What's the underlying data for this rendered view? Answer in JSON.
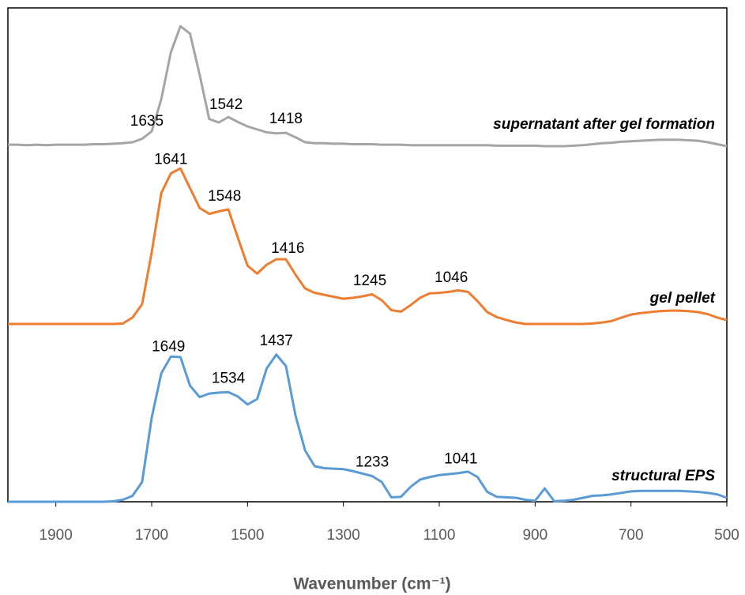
{
  "chart_data": {
    "type": "line",
    "x_label": "Wavenumber (cm⁻¹)",
    "xlim": [
      2000,
      500
    ],
    "xticks": [
      1900,
      1700,
      1500,
      1300,
      1100,
      900,
      700,
      500
    ],
    "ylim": [
      0,
      100
    ],
    "x": [
      2000,
      1980,
      1960,
      1940,
      1920,
      1900,
      1880,
      1860,
      1840,
      1820,
      1800,
      1780,
      1760,
      1740,
      1720,
      1700,
      1680,
      1660,
      1640,
      1620,
      1600,
      1580,
      1560,
      1540,
      1520,
      1500,
      1480,
      1460,
      1440,
      1420,
      1400,
      1380,
      1360,
      1340,
      1320,
      1300,
      1280,
      1260,
      1240,
      1220,
      1200,
      1180,
      1160,
      1140,
      1120,
      1100,
      1080,
      1060,
      1040,
      1020,
      1000,
      980,
      960,
      940,
      920,
      900,
      880,
      860,
      840,
      820,
      800,
      780,
      760,
      740,
      720,
      700,
      680,
      660,
      640,
      620,
      600,
      580,
      560,
      540,
      520,
      500
    ],
    "series": [
      {
        "name": "supernatant after gel formation",
        "color": "#a5a5a5",
        "values": [
          72.3,
          72.3,
          72.2,
          72.3,
          72.2,
          72.3,
          72.3,
          72.3,
          72.3,
          72.4,
          72.4,
          72.5,
          72.6,
          72.8,
          73.5,
          75.0,
          81.5,
          91.0,
          96.3,
          94.8,
          86.5,
          77.5,
          76.8,
          77.9,
          76.9,
          76.0,
          75.4,
          74.8,
          74.6,
          74.7,
          73.8,
          72.8,
          72.6,
          72.6,
          72.5,
          72.5,
          72.4,
          72.4,
          72.4,
          72.3,
          72.3,
          72.3,
          72.2,
          72.2,
          72.2,
          72.2,
          72.2,
          72.2,
          72.2,
          72.2,
          72.2,
          72.1,
          72.1,
          72.1,
          72.1,
          72.1,
          72.0,
          72.0,
          72.0,
          72.1,
          72.2,
          72.4,
          72.6,
          72.7,
          72.9,
          73.0,
          73.1,
          73.2,
          73.3,
          73.3,
          73.3,
          73.2,
          73.1,
          72.8,
          72.4,
          72.0
        ],
        "annotations": [
          {
            "text": "1635",
            "x": 1710
          },
          {
            "text": "1542",
            "x": 1545
          },
          {
            "text": "1418",
            "x": 1420
          }
        ]
      },
      {
        "name": "gel pellet",
        "color": "#ed7d31",
        "values": [
          36.0,
          36.0,
          36.0,
          36.0,
          36.0,
          36.0,
          36.0,
          36.0,
          36.0,
          36.0,
          36.0,
          36.0,
          36.1,
          37.3,
          40.0,
          50.5,
          62.5,
          66.5,
          67.5,
          63.5,
          59.5,
          58.3,
          58.8,
          59.2,
          53.4,
          47.8,
          46.2,
          48.0,
          49.1,
          49.1,
          46.0,
          43.2,
          42.3,
          41.9,
          41.5,
          41.1,
          41.3,
          41.6,
          42.0,
          40.8,
          38.8,
          38.5,
          39.8,
          41.3,
          42.2,
          42.3,
          42.5,
          42.8,
          42.5,
          40.6,
          38.4,
          37.4,
          36.8,
          36.3,
          36.0,
          36.0,
          36.0,
          36.0,
          36.0,
          36.0,
          36.0,
          36.1,
          36.3,
          36.6,
          37.3,
          37.9,
          38.2,
          38.4,
          38.6,
          38.7,
          38.7,
          38.6,
          38.4,
          38.0,
          37.3,
          36.8
        ],
        "annotations": [
          {
            "text": "1641",
            "x": 1660
          },
          {
            "text": "1548",
            "x": 1548
          },
          {
            "text": "1416",
            "x": 1416
          },
          {
            "text": "1245",
            "x": 1245
          },
          {
            "text": "1046",
            "x": 1075
          }
        ]
      },
      {
        "name": "structural EPS",
        "color": "#5b9bd5",
        "values": [
          0,
          0,
          0,
          0,
          0,
          0,
          0,
          0,
          0,
          0,
          0,
          0.1,
          0.4,
          1.2,
          4.0,
          17.0,
          26.0,
          29.4,
          29.3,
          23.5,
          21.2,
          21.9,
          22.1,
          22.2,
          21.3,
          19.7,
          20.8,
          27.0,
          29.8,
          27.5,
          17.5,
          10.4,
          7.2,
          6.8,
          6.7,
          6.6,
          6.2,
          5.7,
          5.2,
          4.0,
          0.9,
          1.0,
          3.0,
          4.5,
          5.0,
          5.4,
          5.6,
          5.8,
          6.1,
          5.0,
          2.0,
          1.0,
          0.9,
          0.8,
          0.4,
          0.2,
          2.7,
          0.1,
          0.2,
          0.4,
          0.8,
          1.2,
          1.3,
          1.5,
          1.8,
          2.1,
          2.2,
          2.2,
          2.2,
          2.2,
          2.2,
          2.1,
          2.0,
          1.8,
          1.5,
          0.8
        ],
        "annotations": [
          {
            "text": "1649",
            "x": 1665
          },
          {
            "text": "1534",
            "x": 1540
          },
          {
            "text": "1437",
            "x": 1440
          },
          {
            "text": "1233",
            "x": 1240
          },
          {
            "text": "1041",
            "x": 1055
          }
        ]
      }
    ]
  }
}
